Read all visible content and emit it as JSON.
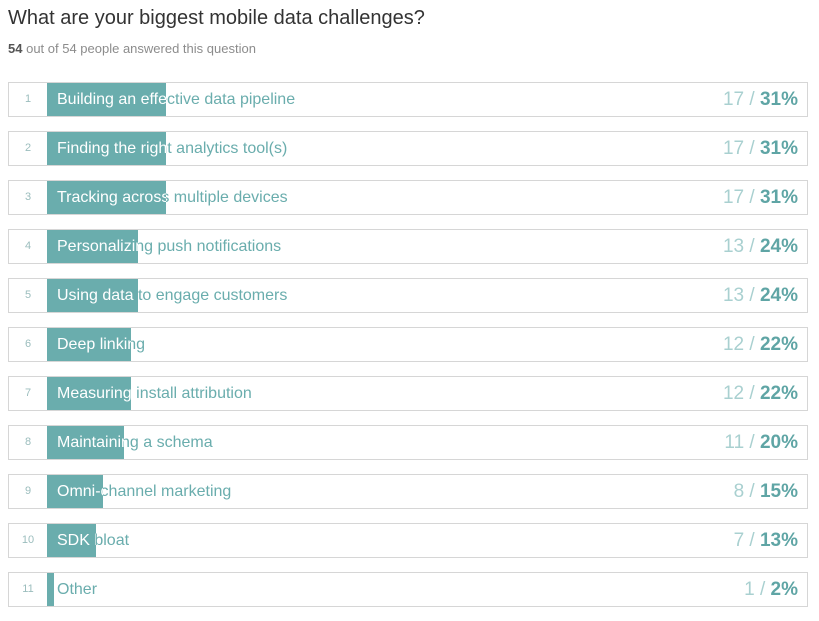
{
  "question": "What are your biggest mobile data challenges?",
  "response_count": "54",
  "response_text": "out of 54 people answered this question",
  "colors": {
    "bar": "#6aadad",
    "label_outside": "#6aadad",
    "percent": "#5fa5a5",
    "count": "#a9d0d0"
  },
  "chart_data": {
    "type": "bar",
    "title": "What are your biggest mobile data challenges?",
    "orientation": "horizontal",
    "total_respondents": 54,
    "categories": [
      "Building an effective data pipeline",
      "Finding the right analytics tool(s)",
      "Tracking across multiple devices",
      "Personalizing push notifications",
      "Using data to engage customers",
      "Deep linking",
      "Measuring install attribution",
      "Maintaining a schema",
      "Omni-channel marketing",
      "SDK bloat",
      "Other"
    ],
    "values": [
      17,
      17,
      17,
      13,
      13,
      12,
      12,
      11,
      8,
      7,
      1
    ],
    "percents": [
      31,
      31,
      31,
      24,
      24,
      22,
      22,
      20,
      15,
      13,
      2
    ],
    "ranks": [
      "1",
      "2",
      "3",
      "4",
      "5",
      "6",
      "7",
      "8",
      "9",
      "10",
      "11"
    ],
    "count_texts": [
      "17 /",
      "17 /",
      "17 /",
      "13 /",
      "13 /",
      "12 /",
      "12 /",
      "11 /",
      "8 /",
      "7 /",
      "1 /"
    ],
    "percent_texts": [
      "31%",
      "31%",
      "31%",
      "24%",
      "24%",
      "22%",
      "22%",
      "20%",
      "15%",
      "13%",
      "2%"
    ]
  }
}
